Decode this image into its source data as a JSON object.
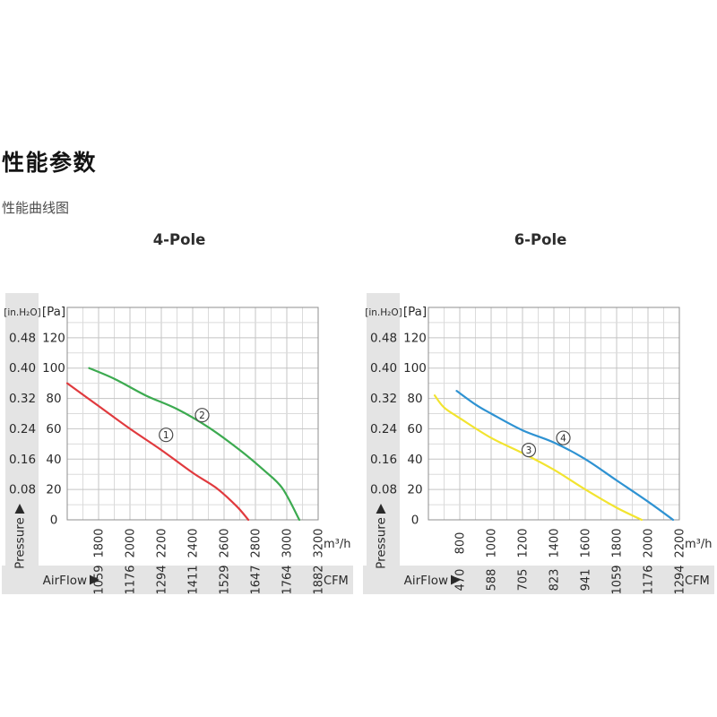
{
  "heading": "性能参数",
  "subheading": "性能曲线图",
  "axis_labels": {
    "pressure": "Pressure",
    "airflow": "AirFlow"
  },
  "colors": {
    "band": "#e4e4e4",
    "grid_minor": "#dbdbdb",
    "grid_major": "#c4c4c4",
    "plot_border": "#8f8f8f",
    "text": "#2a2a2a",
    "series_red": "#e03a3e",
    "series_green": "#3caa50",
    "series_yellow": "#f2e430",
    "series_blue": "#2e92d2",
    "label_circle_border": "#4a4a4a"
  },
  "chart_data": [
    {
      "type": "line",
      "title": "4-Pole",
      "x_range": [
        1600,
        3200
      ],
      "x_minor": 100,
      "x_major": 200,
      "y_range": [
        0,
        140
      ],
      "y_minor": 10,
      "y_major": 20,
      "x_axis_m3h": {
        "unit": "m³/h",
        "ticks": [
          1800,
          2000,
          2200,
          2400,
          2600,
          2800,
          3000,
          3200
        ]
      },
      "x_axis_cfm": {
        "unit": "CFM",
        "ticks": [
          1059,
          1176,
          1294,
          1411,
          1529,
          1647,
          1764,
          1882
        ]
      },
      "y_axis_pa": {
        "header": "[Pa]",
        "ticks": [
          120,
          100,
          80,
          60,
          40,
          20,
          0
        ]
      },
      "y_axis_inh2o": {
        "header": "[in.H₂O]",
        "ticks": [
          "0.48",
          "0.40",
          "0.32",
          "0.24",
          "0.16",
          "0.08"
        ]
      },
      "series": [
        {
          "name": "1",
          "color": "#e03a3e",
          "points": [
            [
              1600,
              90
            ],
            [
              1800,
              75
            ],
            [
              2000,
              60
            ],
            [
              2200,
              46
            ],
            [
              2400,
              31
            ],
            [
              2550,
              21
            ],
            [
              2680,
              9
            ],
            [
              2755,
              0
            ]
          ],
          "label_at": [
            2230,
            56
          ]
        },
        {
          "name": "2",
          "color": "#3caa50",
          "points": [
            [
              1740,
              100
            ],
            [
              1900,
              93
            ],
            [
              2100,
              82
            ],
            [
              2300,
              73
            ],
            [
              2500,
              61
            ],
            [
              2700,
              46
            ],
            [
              2850,
              33
            ],
            [
              2970,
              21
            ],
            [
              3080,
              0
            ]
          ],
          "label_at": [
            2460,
            69
          ]
        }
      ]
    },
    {
      "type": "line",
      "title": "6-Pole",
      "x_range": [
        600,
        2200
      ],
      "x_minor": 100,
      "x_major": 200,
      "y_range": [
        0,
        140
      ],
      "y_minor": 10,
      "y_major": 20,
      "x_axis_m3h": {
        "unit": "m³/h",
        "ticks": [
          800,
          1000,
          1200,
          1400,
          1600,
          1800,
          2000,
          2200
        ]
      },
      "x_axis_cfm": {
        "unit": "CFM",
        "ticks": [
          470,
          588,
          705,
          823,
          941,
          1059,
          1176,
          1294
        ]
      },
      "y_axis_pa": {
        "header": "[Pa]",
        "ticks": [
          120,
          100,
          80,
          60,
          40,
          20,
          0
        ]
      },
      "y_axis_inh2o": {
        "header": "[in.H₂O]",
        "ticks": [
          "0.48",
          "0.40",
          "0.32",
          "0.24",
          "0.16",
          "0.08"
        ]
      },
      "series": [
        {
          "name": "3",
          "color": "#f2e430",
          "points": [
            [
              640,
              82
            ],
            [
              700,
              74
            ],
            [
              800,
              67
            ],
            [
              1000,
              54
            ],
            [
              1200,
              44
            ],
            [
              1400,
              33
            ],
            [
              1600,
              20
            ],
            [
              1800,
              8
            ],
            [
              1960,
              0
            ]
          ],
          "label_at": [
            1240,
            46
          ]
        },
        {
          "name": "4",
          "color": "#2e92d2",
          "points": [
            [
              780,
              85
            ],
            [
              900,
              76
            ],
            [
              1000,
              70
            ],
            [
              1200,
              59
            ],
            [
              1400,
              51
            ],
            [
              1600,
              40
            ],
            [
              1800,
              26
            ],
            [
              2000,
              12
            ],
            [
              2160,
              0
            ]
          ],
          "label_at": [
            1460,
            54
          ]
        }
      ]
    }
  ]
}
